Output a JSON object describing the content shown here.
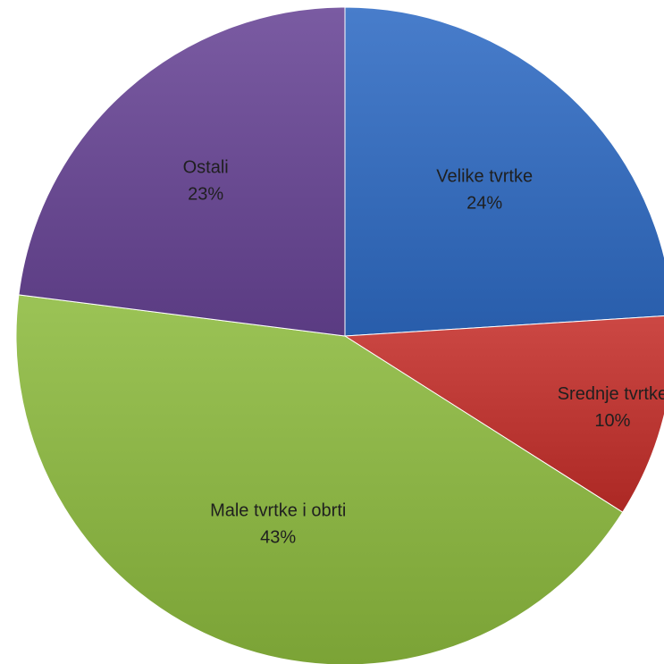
{
  "chart_data": {
    "type": "pie",
    "title": "",
    "slices": [
      {
        "label": "Velike tvrtke",
        "value": 24,
        "value_label": "24%",
        "color": "#3a6fbd"
      },
      {
        "label": "Srednje tvrtke",
        "value": 10,
        "value_label": "10%",
        "color": "#be3a36"
      },
      {
        "label": "Male tvrtke i obrti",
        "value": 43,
        "value_label": "43%",
        "color": "#8db548"
      },
      {
        "label": "Ostali",
        "value": 23,
        "value_label": "23%",
        "color": "#6c4d94"
      }
    ],
    "start_angle": "12 o'clock, clockwise",
    "legend": "none"
  }
}
